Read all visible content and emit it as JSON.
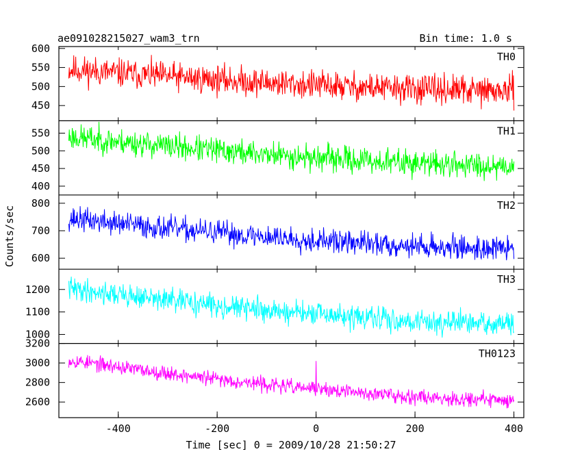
{
  "header": {
    "title": "ae091028215027_wam3_trn",
    "bin_time": "Bin time: 1.0 s"
  },
  "axes": {
    "xlabel": "Time [sec] 0 = 2009/10/28 21:50:27",
    "ylabel": "Counts/sec",
    "xlim": [
      -520,
      420
    ],
    "x_ticks": [
      -400,
      -200,
      0,
      200,
      400
    ]
  },
  "chart_data": [
    {
      "type": "line",
      "series_name": "TH0",
      "color": "#ff0000",
      "ylim": [
        410,
        605
      ],
      "y_ticks": [
        450,
        500,
        550,
        600
      ],
      "x_range": [
        -500,
        400
      ],
      "start": 545,
      "end": 488,
      "noise": 28,
      "seed": 11,
      "spikes": []
    },
    {
      "type": "line",
      "series_name": "TH1",
      "color": "#00ff00",
      "ylim": [
        375,
        585
      ],
      "y_ticks": [
        400,
        450,
        500,
        550
      ],
      "x_range": [
        -500,
        400
      ],
      "start": 540,
      "end": 458,
      "noise": 27,
      "seed": 23,
      "spikes": []
    },
    {
      "type": "line",
      "series_name": "TH2",
      "color": "#0000ff",
      "ylim": [
        560,
        830
      ],
      "y_ticks": [
        600,
        700,
        800
      ],
      "x_range": [
        -500,
        400
      ],
      "start": 745,
      "end": 635,
      "noise": 32,
      "seed": 37,
      "spikes": []
    },
    {
      "type": "line",
      "series_name": "TH3",
      "color": "#00ffff",
      "ylim": [
        960,
        1290
      ],
      "y_ticks": [
        1000,
        1100,
        1200
      ],
      "x_range": [
        -500,
        400
      ],
      "start": 1205,
      "end": 1045,
      "noise": 38,
      "seed": 41,
      "spikes": []
    },
    {
      "type": "line",
      "series_name": "TH0123",
      "color": "#ff00ff",
      "ylim": [
        2440,
        3200
      ],
      "y_ticks": [
        2600,
        2800,
        3000,
        3200
      ],
      "x_range": [
        -500,
        400
      ],
      "start": 3030,
      "end": 2620,
      "noise": 55,
      "seed": 53,
      "spikes": [
        [
          0,
          3020
        ]
      ]
    }
  ]
}
